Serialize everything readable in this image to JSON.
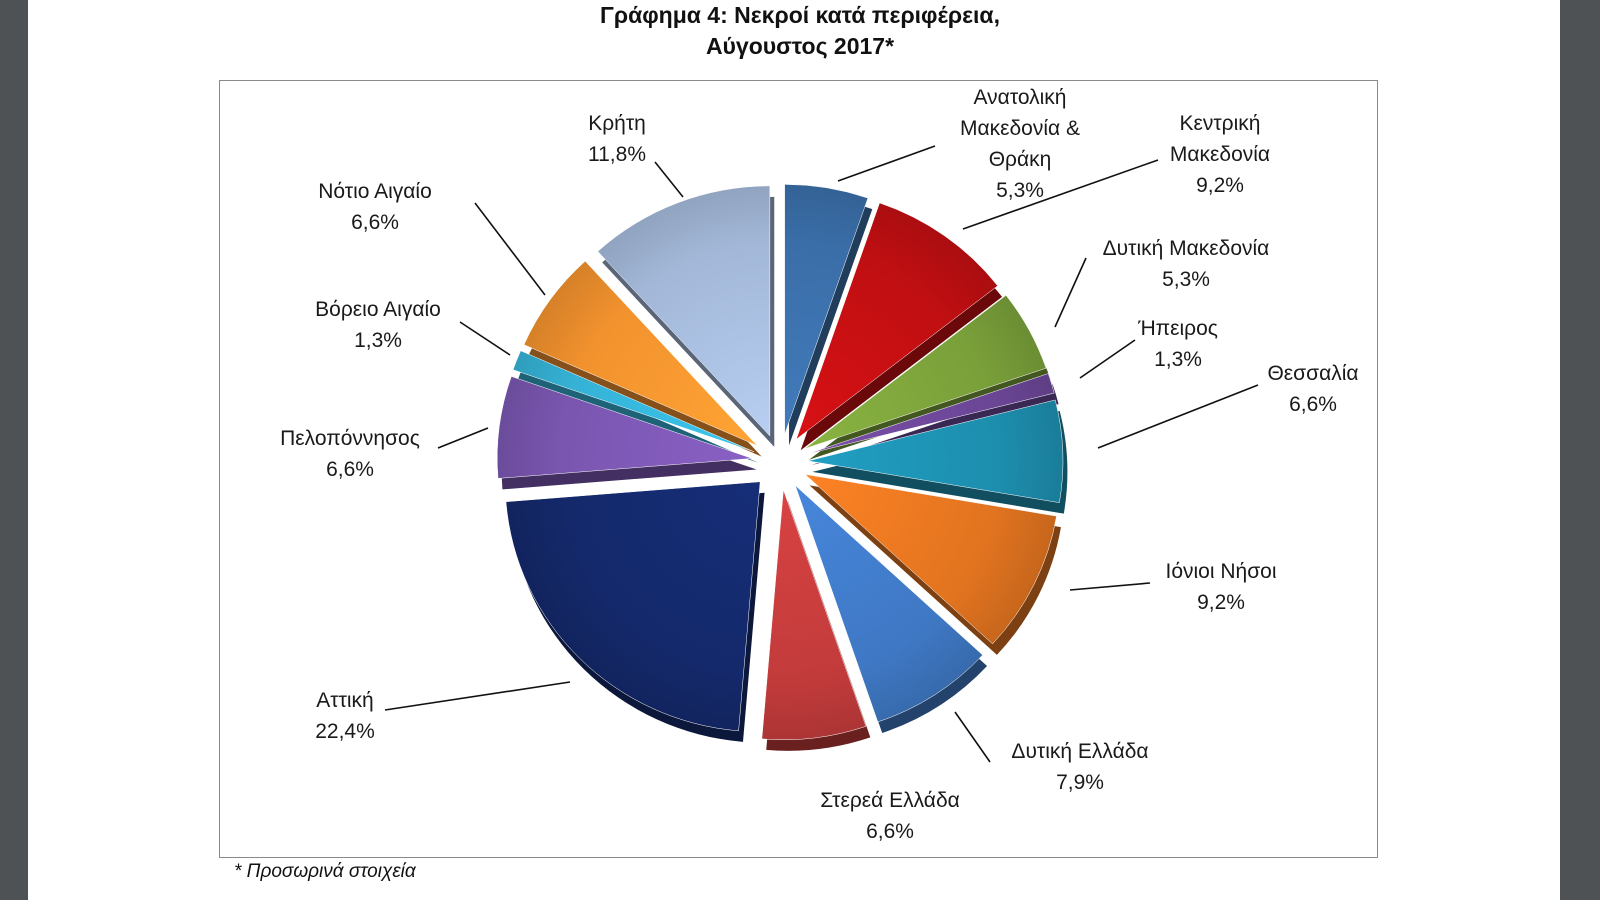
{
  "chart_data": {
    "type": "pie",
    "title": "Γράφημα 4: Νεκροί κατά περιφέρεια,",
    "subtitle": "Αύγουστος 2017*",
    "slices": [
      {
        "label": "Ανατολική Μακεδονία & Θράκη",
        "value_label": "5,3%",
        "value": 5.3,
        "color": "#3a6ea8"
      },
      {
        "label": "Κεντρική Μακεδονία",
        "value_label": "9,2%",
        "value": 9.2,
        "color": "#c00f12"
      },
      {
        "label": "Δυτική Μακεδονία",
        "value_label": "5,3%",
        "value": 5.3,
        "color": "#7aa03a"
      },
      {
        "label": "Ήπειρος",
        "value_label": "1,3%",
        "value": 1.3,
        "color": "#6b4696"
      },
      {
        "label": "Θεσσαλία",
        "value_label": "6,6%",
        "value": 6.6,
        "color": "#1d8eae"
      },
      {
        "label": "Ιόνιοι Νήσοι",
        "value_label": "9,2%",
        "value": 9.2,
        "color": "#e27420"
      },
      {
        "label": "Δυτική Ελλάδα",
        "value_label": "7,9%",
        "value": 7.9,
        "color": "#3f78c4"
      },
      {
        "label": "Στερεά Ελλάδα",
        "value_label": "6,6%",
        "value": 6.6,
        "color": "#c23b3b"
      },
      {
        "label": "Αττική",
        "value_label": "22,4%",
        "value": 22.4,
        "color": "#14296b"
      },
      {
        "label": "Πελοπόννησος",
        "value_label": "6,6%",
        "value": 6.6,
        "color": "#7a56b0"
      },
      {
        "label": "Βόρειο Αιγαίο",
        "value_label": "1,3%",
        "value": 1.3,
        "color": "#35b2d6"
      },
      {
        "label": "Νότιο Αιγαίο",
        "value_label": "6,6%",
        "value": 6.6,
        "color": "#f2922e"
      },
      {
        "label": "Κρήτη",
        "value_label": "11,8%",
        "value": 11.8,
        "color": "#a3b8d8"
      }
    ]
  },
  "footnote": "* Προσωρινά στοιχεία"
}
